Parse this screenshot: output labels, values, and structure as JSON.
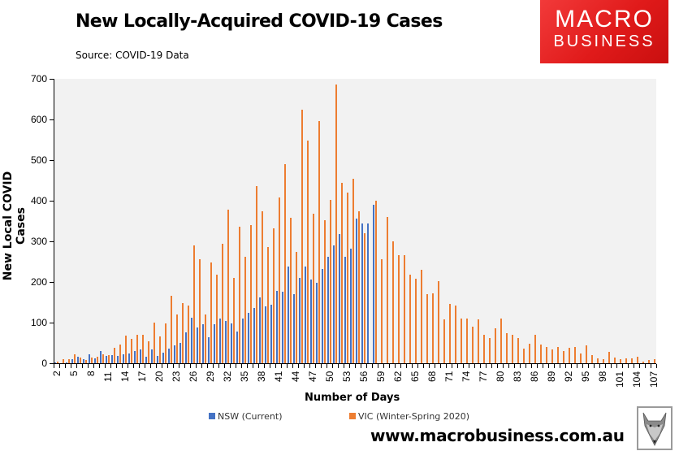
{
  "header": {
    "title": "New Locally-Acquired COVID-19 Cases",
    "source": "Source: COVID-19 Data"
  },
  "logo": {
    "line1": "MACRO",
    "line2": "BUSINESS",
    "color": "#e01a1a"
  },
  "footer": {
    "url": "www.macrobusiness.com.au",
    "fox_icon": "fox-head-icon"
  },
  "colors": {
    "nsw": "#4472c4",
    "vic": "#ed7d31",
    "plot_bg": "#f2f2f2"
  },
  "chart_data": {
    "type": "bar",
    "title": "New Locally-Acquired COVID-19 Cases",
    "subtitle": "Source: COVID-19 Data",
    "xlabel": "Number of Days",
    "ylabel": "New Local COVID Cases",
    "ylim": [
      0,
      700
    ],
    "yticks": [
      0,
      100,
      200,
      300,
      400,
      500,
      600,
      700
    ],
    "xtick_labels": [
      "2",
      "5",
      "8",
      "11",
      "14",
      "17",
      "20",
      "23",
      "26",
      "29",
      "32",
      "35",
      "38",
      "41",
      "44",
      "47",
      "50",
      "53",
      "56",
      "59",
      "62",
      "65",
      "68",
      "71",
      "74",
      "77",
      "80",
      "83",
      "86",
      "89",
      "92",
      "95",
      "98",
      "101",
      "104",
      "107"
    ],
    "grid": false,
    "legend_position": "bottom",
    "categories": [
      2,
      3,
      4,
      5,
      6,
      7,
      8,
      9,
      10,
      11,
      12,
      13,
      14,
      15,
      16,
      17,
      18,
      19,
      20,
      21,
      22,
      23,
      24,
      25,
      26,
      27,
      28,
      29,
      30,
      31,
      32,
      33,
      34,
      35,
      36,
      37,
      38,
      39,
      40,
      41,
      42,
      43,
      44,
      45,
      46,
      47,
      48,
      49,
      50,
      51,
      52,
      53,
      54,
      55,
      56,
      57,
      58,
      59,
      60,
      61,
      62,
      63,
      64,
      65,
      66,
      67,
      68,
      69,
      70,
      71,
      72,
      73,
      74,
      75,
      76,
      77,
      78,
      79,
      80,
      81,
      82,
      83,
      84,
      85,
      86,
      87,
      88,
      89,
      90,
      91,
      92,
      93,
      94,
      95,
      96,
      97,
      98,
      99,
      100,
      101,
      102,
      103,
      104,
      105,
      106,
      107
    ],
    "series": [
      {
        "name": "NSW (Current)",
        "color": "#4472c4",
        "values": [
          2,
          1,
          3,
          10,
          16,
          10,
          22,
          12,
          30,
          18,
          20,
          18,
          22,
          24,
          30,
          34,
          16,
          34,
          18,
          26,
          36,
          44,
          50,
          76,
          112,
          88,
          96,
          64,
          96,
          110,
          104,
          98,
          78,
          110,
          124,
          136,
          162,
          140,
          144,
          178,
          176,
          238,
          170,
          210,
          238,
          206,
          198,
          232,
          262,
          290,
          318,
          262,
          282,
          356,
          344,
          344,
          390,
          null,
          null,
          null,
          null,
          null,
          null,
          null,
          null,
          null,
          null,
          null,
          null,
          null,
          null,
          null,
          null,
          null,
          null,
          null,
          null,
          null,
          null,
          null,
          null,
          null,
          null,
          null,
          null,
          null,
          null,
          null,
          null,
          null,
          null,
          null,
          null,
          null,
          null,
          null,
          null,
          null,
          null,
          null,
          null,
          null,
          null,
          null,
          null,
          null
        ]
      },
      {
        "name": "VIC (Winter-Spring 2020)",
        "color": "#ed7d31",
        "values": [
          4,
          10,
          10,
          22,
          14,
          8,
          14,
          16,
          22,
          20,
          38,
          46,
          68,
          60,
          70,
          70,
          54,
          100,
          66,
          98,
          166,
          120,
          148,
          142,
          290,
          256,
          120,
          248,
          218,
          294,
          378,
          210,
          336,
          262,
          340,
          436,
          374,
          286,
          332,
          408,
          490,
          358,
          274,
          624,
          548,
          368,
          596,
          352,
          402,
          686,
          444,
          420,
          454,
          374,
          320,
          null,
          400,
          256,
          360,
          300,
          266,
          266,
          218,
          208,
          230,
          170,
          172,
          202,
          108,
          146,
          142,
          110,
          110,
          90,
          108,
          70,
          62,
          86,
          110,
          74,
          70,
          62,
          36,
          48,
          70,
          46,
          40,
          34,
          40,
          30,
          38,
          40,
          24,
          44,
          20,
          12,
          10,
          28,
          14,
          10,
          12,
          12,
          16,
          4,
          8,
          10
        ]
      }
    ]
  },
  "legend": {
    "items": [
      {
        "label": "NSW (Current)",
        "color": "#4472c4"
      },
      {
        "label": "VIC (Winter-Spring 2020)",
        "color": "#ed7d31"
      }
    ]
  }
}
